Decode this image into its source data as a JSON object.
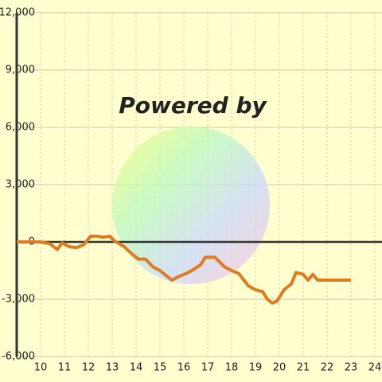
{
  "chart_data": {
    "type": "line",
    "watermark": "Powered by",
    "x": [
      9.0,
      10.0,
      10.4,
      10.7,
      10.9,
      11.2,
      11.5,
      11.8,
      12.1,
      12.4,
      12.6,
      12.9,
      13.1,
      13.5,
      13.8,
      14.1,
      14.4,
      14.7,
      15.0,
      15.3,
      15.5,
      15.8,
      16.1,
      16.4,
      16.7,
      16.9,
      17.3,
      17.7,
      18.0,
      18.3,
      18.7,
      19.0,
      19.3,
      19.5,
      19.7,
      19.9,
      20.2,
      20.5,
      20.7,
      21.0,
      21.2,
      21.4,
      21.6,
      22.0,
      23.0
    ],
    "series": [
      {
        "color": "#e07b20",
        "values": [
          0,
          0,
          -100,
          -400,
          -50,
          -250,
          -300,
          -150,
          300,
          300,
          250,
          300,
          50,
          -250,
          -600,
          -900,
          -900,
          -1300,
          -1500,
          -1800,
          -2000,
          -1800,
          -1650,
          -1450,
          -1200,
          -800,
          -800,
          -1300,
          -1500,
          -1650,
          -2300,
          -2500,
          -2600,
          -3000,
          -3200,
          -3100,
          -2500,
          -2200,
          -1600,
          -1700,
          -2000,
          -1700,
          -2000,
          -2000,
          -2000
        ]
      }
    ],
    "xlim": [
      9,
      24.3
    ],
    "ylim": [
      -6000,
      12000
    ],
    "xticks": [
      10,
      11,
      12,
      13,
      14,
      15,
      16,
      17,
      18,
      19,
      20,
      21,
      22,
      23,
      24
    ],
    "yticks": [
      {
        "value": -6000,
        "label": "-6,000"
      },
      {
        "value": -3000,
        "label": "-3,000"
      },
      0,
      {
        "value": 3000,
        "label": "3,000"
      },
      {
        "value": 6000,
        "label": "6,000"
      },
      {
        "value": 9000,
        "label": "9,000"
      },
      {
        "value": 12000,
        "label": "12,000"
      }
    ],
    "grid": true
  }
}
